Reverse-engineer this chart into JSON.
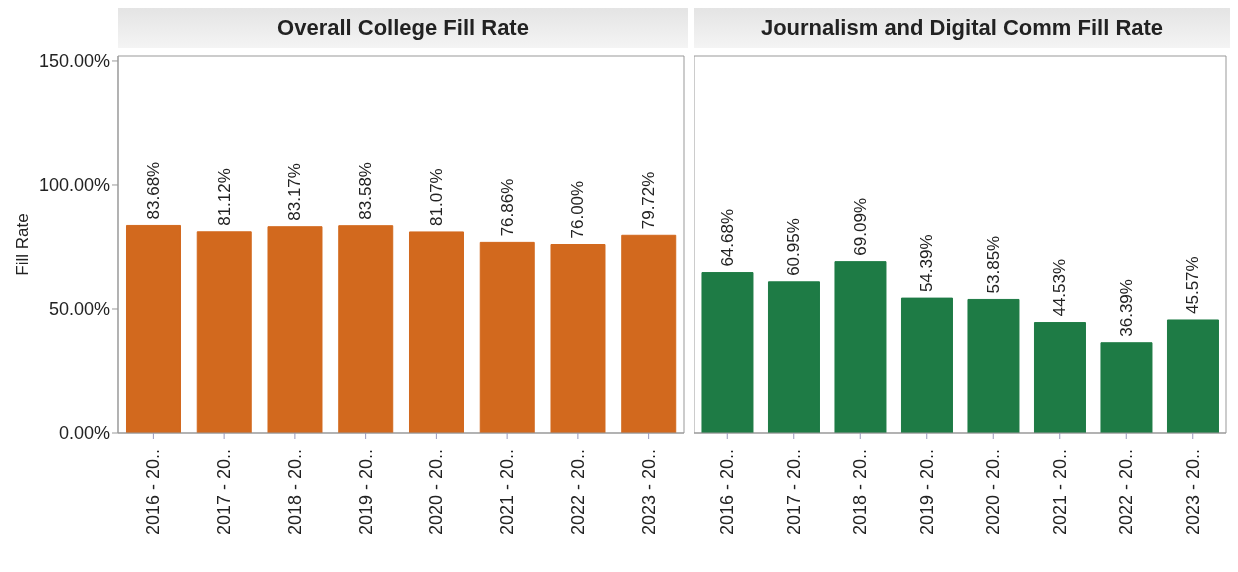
{
  "chart_data": [
    {
      "type": "bar",
      "title": "Overall College Fill Rate",
      "ylabel": "Fill Rate",
      "categories": [
        "2016 - 20..",
        "2017 - 20..",
        "2018 - 20..",
        "2019 - 20..",
        "2020 - 20..",
        "2021 - 20..",
        "2022 - 20..",
        "2023 - 20.."
      ],
      "values": [
        83.68,
        81.12,
        83.17,
        83.58,
        81.07,
        76.86,
        76.0,
        79.72
      ],
      "value_labels": [
        "83.68%",
        "81.12%",
        "83.17%",
        "83.58%",
        "81.07%",
        "76.86%",
        "76.00%",
        "79.72%"
      ],
      "color": "#d2691e",
      "ylim": [
        0,
        152
      ],
      "yticks": [
        {
          "value": 0,
          "label": "0.00%"
        },
        {
          "value": 50,
          "label": "50.00%"
        },
        {
          "value": 100,
          "label": "100.00%"
        },
        {
          "value": 150,
          "label": "150.00%"
        }
      ],
      "grid": false,
      "legend": false
    },
    {
      "type": "bar",
      "title": "Journalism and Digital Comm Fill Rate",
      "categories": [
        "2016 - 20..",
        "2017 - 20..",
        "2018 - 20..",
        "2019 - 20..",
        "2020 - 20..",
        "2021 - 20..",
        "2022 - 20..",
        "2023 - 20.."
      ],
      "values": [
        64.68,
        60.95,
        69.09,
        54.39,
        53.85,
        44.53,
        36.39,
        45.57
      ],
      "value_labels": [
        "64.68%",
        "60.95%",
        "69.09%",
        "54.39%",
        "53.85%",
        "44.53%",
        "36.39%",
        "45.57%"
      ],
      "color": "#1e7b45",
      "ylim": [
        0,
        152
      ],
      "tick_labels": "x",
      "grid": false,
      "legend": false
    }
  ]
}
